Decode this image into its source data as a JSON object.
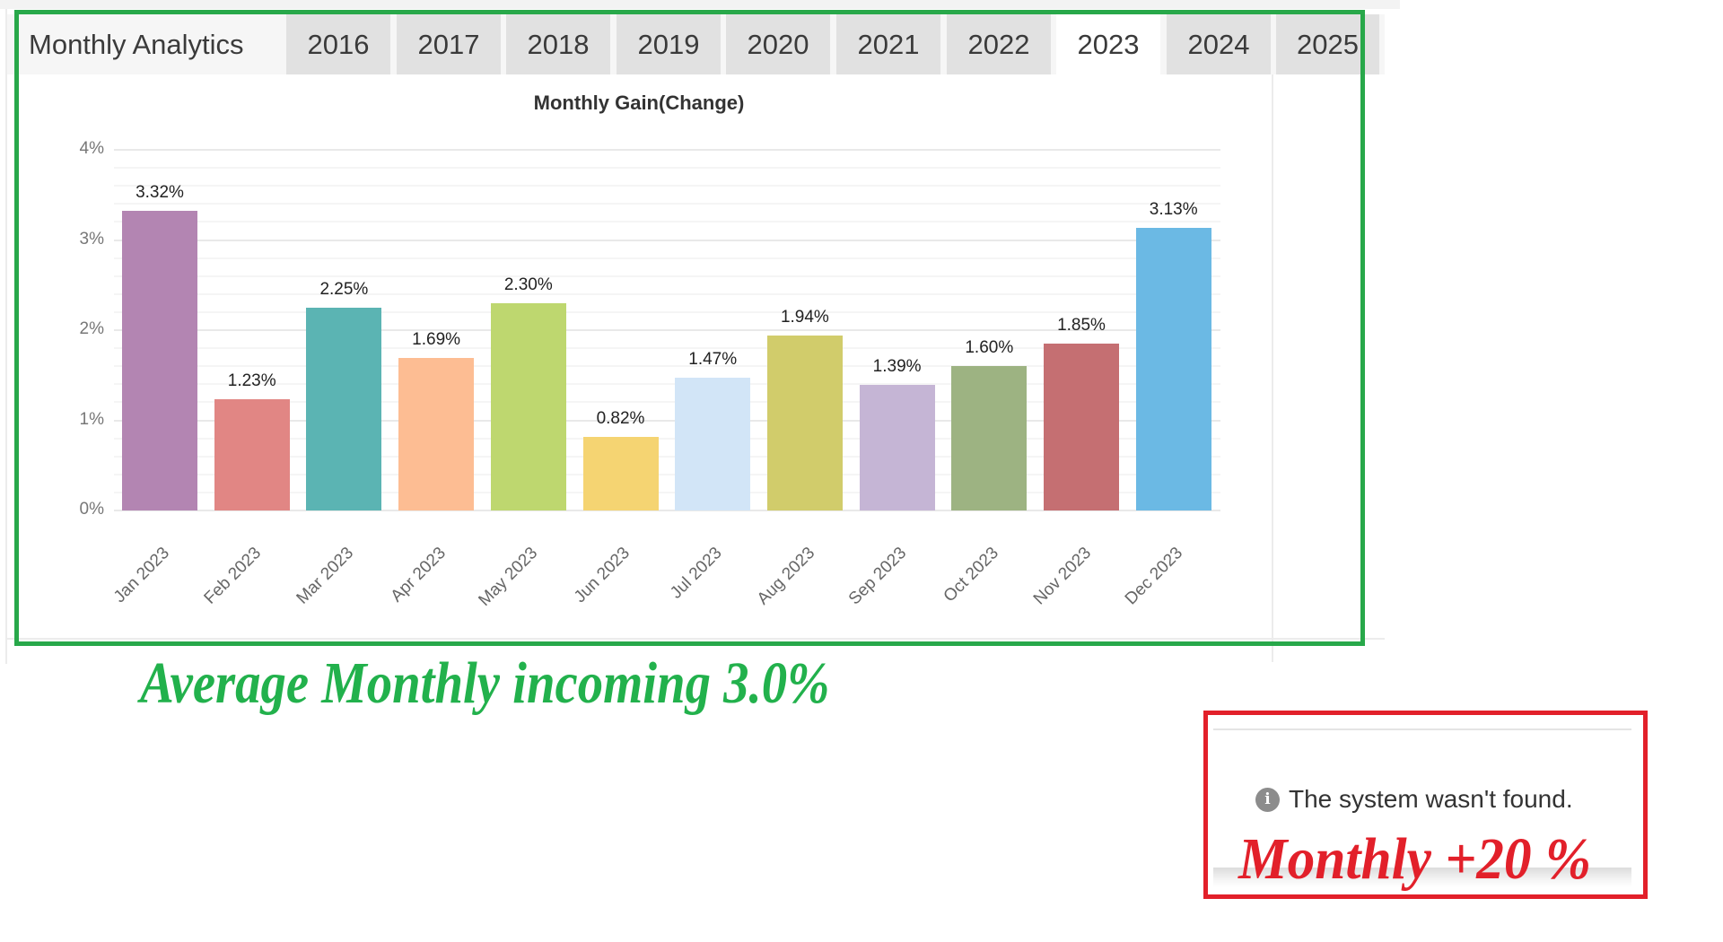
{
  "tabs": {
    "title": "Monthly Analytics",
    "years": [
      "2016",
      "2017",
      "2018",
      "2019",
      "2020",
      "2021",
      "2022",
      "2023",
      "2024",
      "2025"
    ],
    "active": "2023"
  },
  "chart_data": {
    "type": "bar",
    "title": "Monthly Gain(Change)",
    "xlabel": "",
    "ylabel": "",
    "ylim": [
      0,
      4
    ],
    "yticks": [
      "0%",
      "1%",
      "2%",
      "3%",
      "4%"
    ],
    "grid": true,
    "legend": "none",
    "categories": [
      "Jan 2023",
      "Feb 2023",
      "Mar 2023",
      "Apr 2023",
      "May 2023",
      "Jun 2023",
      "Jul 2023",
      "Aug 2023",
      "Sep 2023",
      "Oct 2023",
      "Nov 2023",
      "Dec 2023"
    ],
    "values": [
      3.32,
      1.23,
      2.25,
      1.69,
      2.3,
      0.82,
      1.47,
      1.94,
      1.39,
      1.6,
      1.85,
      3.13
    ],
    "value_labels": [
      "3.32%",
      "1.23%",
      "2.25%",
      "1.69%",
      "2.30%",
      "0.82%",
      "1.47%",
      "1.94%",
      "1.39%",
      "1.60%",
      "1.85%",
      "3.13%"
    ],
    "colors": [
      "#b385b2",
      "#e18684",
      "#5bb4b3",
      "#fdbd93",
      "#bed76f",
      "#f5d472",
      "#d2e5f7",
      "#d1cc6b",
      "#c5b5d5",
      "#9db382",
      "#c56f72",
      "#6bb9e4"
    ]
  },
  "annotations": {
    "average_caption": "Average Monthly incoming 3.0%",
    "average_color": "#22b14c",
    "frame_color": "#28a84a",
    "notice_text": "The system wasn't found.",
    "notice_icon": "info-icon",
    "monthly_caption": "Monthly +20 %",
    "monthly_color": "#e2202a"
  }
}
